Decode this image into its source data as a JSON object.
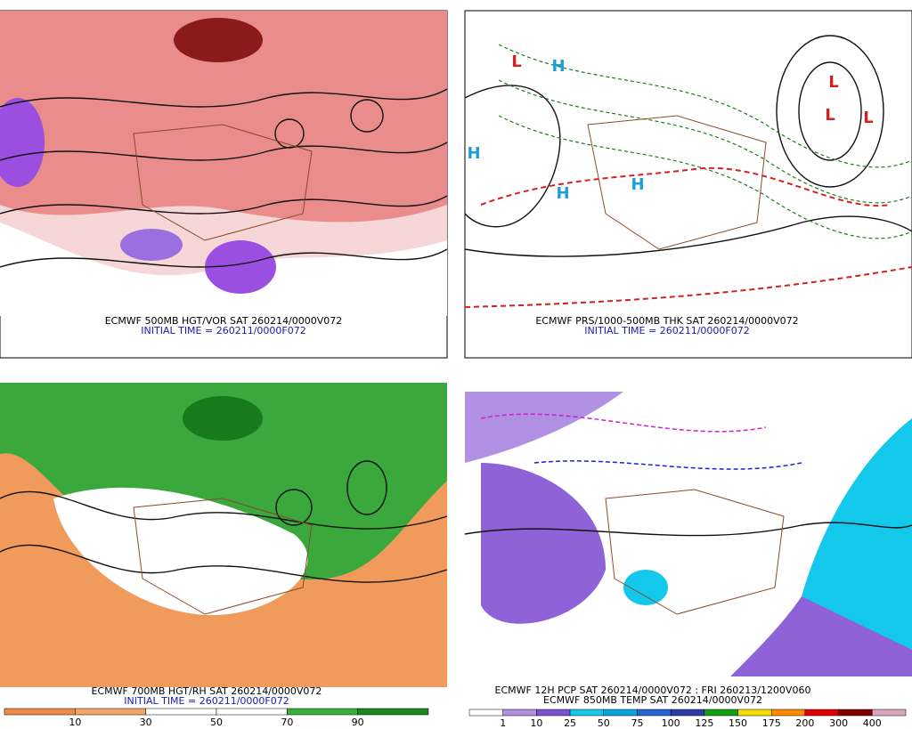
{
  "panels": [
    {
      "caption": "ECMWF 500MB HGT/VOR SAT 260214/0000V072",
      "init": "INITIAL TIME = 260211/0000F072"
    },
    {
      "caption": "ECMWF PRS/1000-500MB THK SAT 260214/0000V072",
      "init": "INITIAL TIME = 260211/0000F072",
      "centers": [
        "H",
        "H",
        "H",
        "H",
        "L",
        "L",
        "L",
        "L"
      ]
    },
    {
      "caption": "ECMWF 700MB HGT/RH SAT 260214/0000V072",
      "init": "INITIAL TIME = 260211/0000F072",
      "colorbar": {
        "labels": [
          "10",
          "30",
          "50",
          "70",
          "90"
        ],
        "colors": [
          "#ef8a47",
          "#f4a66a",
          "#ffffff",
          "#ffffff",
          "#39b03c",
          "#168a1c"
        ]
      }
    },
    {
      "caption": "ECMWF 12H PCP SAT 260214/0000V072 : FRI 260213/1200V060",
      "caption2": "ECMWF 850MB TEMP SAT 260214/0000V072",
      "colorbar": {
        "labels": [
          "1",
          "10",
          "25",
          "50",
          "75",
          "100",
          "125",
          "150",
          "175",
          "200",
          "300",
          "400"
        ],
        "colors": [
          "#ffffff",
          "#b28ee0",
          "#7d52d2",
          "#14c8ec",
          "#0aa4dc",
          "#2466d2",
          "#2e3aa8",
          "#10a010",
          "#f2e000",
          "#ff8a00",
          "#e00000",
          "#800000",
          "#d9a6bd"
        ]
      }
    }
  ]
}
